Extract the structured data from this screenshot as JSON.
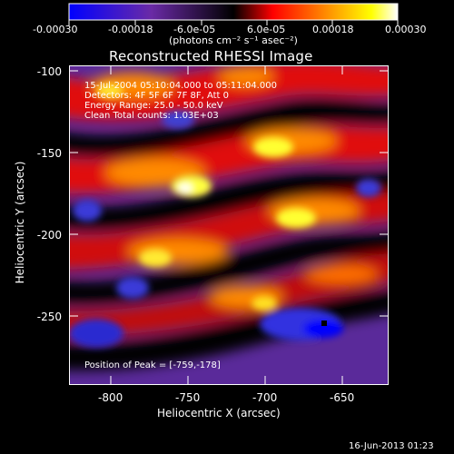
{
  "colorbar": {
    "ticks": [
      "-0.00030",
      "-0.00018",
      "-6.0e-05",
      "6.0e-05",
      "0.00018",
      "0.00030"
    ],
    "units": "(photons cm⁻² s⁻¹ asec⁻²)",
    "colors": [
      "#0000ff",
      "#6a2aa6",
      "#000000",
      "#ff0000",
      "#ff8a00",
      "#ffff00",
      "#ffffff"
    ]
  },
  "plot": {
    "title": "Reconstructed RHESSI Image",
    "xlabel": "Heliocentric X (arcsec)",
    "ylabel": "Heliocentric Y (arcsec)",
    "xticks": [
      "-800",
      "-750",
      "-700",
      "-650"
    ],
    "yticks": [
      "-100",
      "-150",
      "-200",
      "-250"
    ],
    "overlay": [
      "15-Jul-2004 05:10:04.000 to 05:11:04.000",
      "Detectors: 4F 5F 6F 7F 8F, Att 0",
      "Energy Range: 25.0 - 50.0 keV",
      "Clean    Total counts: 1.03E+03"
    ],
    "peak": "Position of Peak = [-759,-178]"
  },
  "footer": {
    "timestamp": "16-Jun-2013 01:23"
  }
}
